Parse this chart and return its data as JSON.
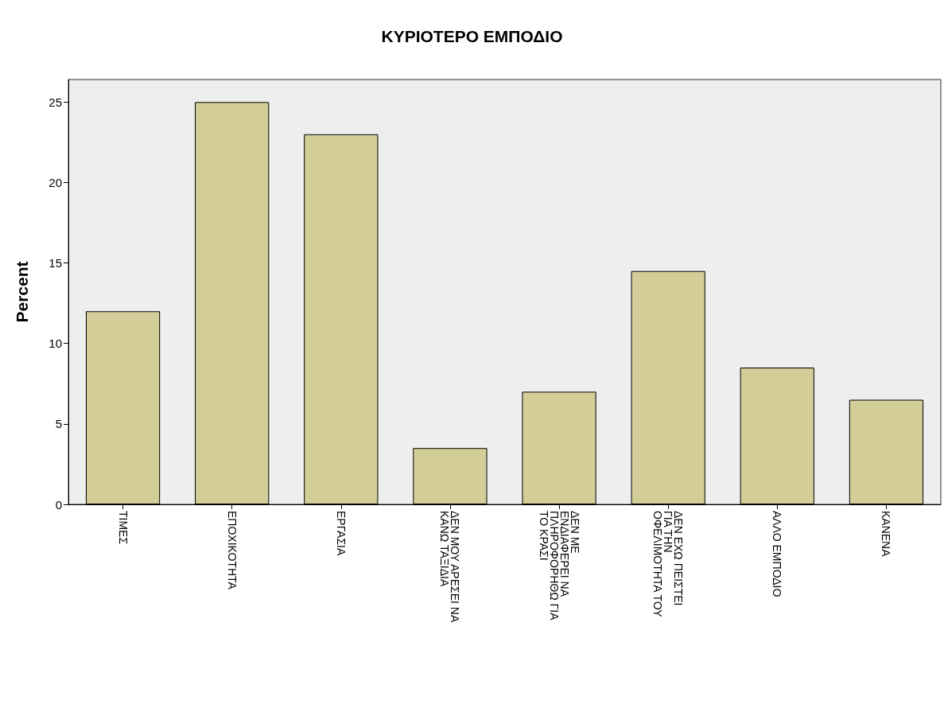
{
  "chart_data": {
    "type": "bar",
    "title": "ΚΥΡΙΟΤΕΡΟ ΕΜΠΟΔΙΟ",
    "ylabel": "Percent",
    "categories": [
      "ΤΙΜΕΣ",
      "ΕΠΟΧΙΚΟΤΗΤΑ",
      "ΕΡΓΑΣΙΑ",
      "ΔΕΝ ΜΟΥ ΑΡΕΣΕΙ ΝΑ ΚΑΝΩ ΤΑΞΙΔΙΑ",
      "ΔΕΝ ΜΕ ΕΝΔΙΑΦΕΡΕΙ ΝΑ ΠΛΗΡΟΦΟΡΗΘΩ ΓΙΑ ΤΟ ΚΡΑΣΙ",
      "ΔΕΝ ΕΧΩ ΠΕΙΣΤΕΙ ΓΙΑ ΤΗΝ ΟΦΕΛΙΜΟΤΗΤΑ ΤΟΥ",
      "ΑΛΛΟ ΕΜΠΟΔΙΟ",
      "ΚΑΝΕΝΑ"
    ],
    "values": [
      12,
      25,
      23,
      3.5,
      7,
      14.5,
      8.5,
      6.5
    ],
    "color": "#d3cd97",
    "ylim": [
      0,
      26.4
    ],
    "yticks": [
      0,
      5,
      10,
      15,
      20,
      25
    ],
    "grid": false
  }
}
